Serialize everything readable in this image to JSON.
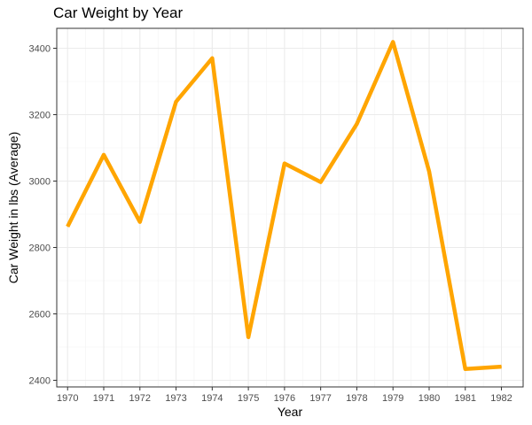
{
  "chart_data": {
    "type": "line",
    "title": "Car Weight by Year",
    "xlabel": "Year",
    "ylabel": "Car Weight in lbs (Average)",
    "x": [
      1970,
      1971,
      1972,
      1973,
      1974,
      1975,
      1976,
      1977,
      1978,
      1979,
      1980,
      1981,
      1982
    ],
    "series": [
      {
        "values": [
          2863,
          3079,
          2877,
          3239,
          3370,
          2530,
          3053,
          2997,
          3172,
          3419,
          3029,
          2434,
          2441
        ],
        "color": "#FFA500"
      }
    ],
    "yticks": [
      2400,
      2600,
      2800,
      3000,
      3200,
      3400
    ],
    "ylim": [
      2380,
      3460
    ],
    "xlim": [
      1969.7,
      1982.6
    ],
    "grid": true
  }
}
